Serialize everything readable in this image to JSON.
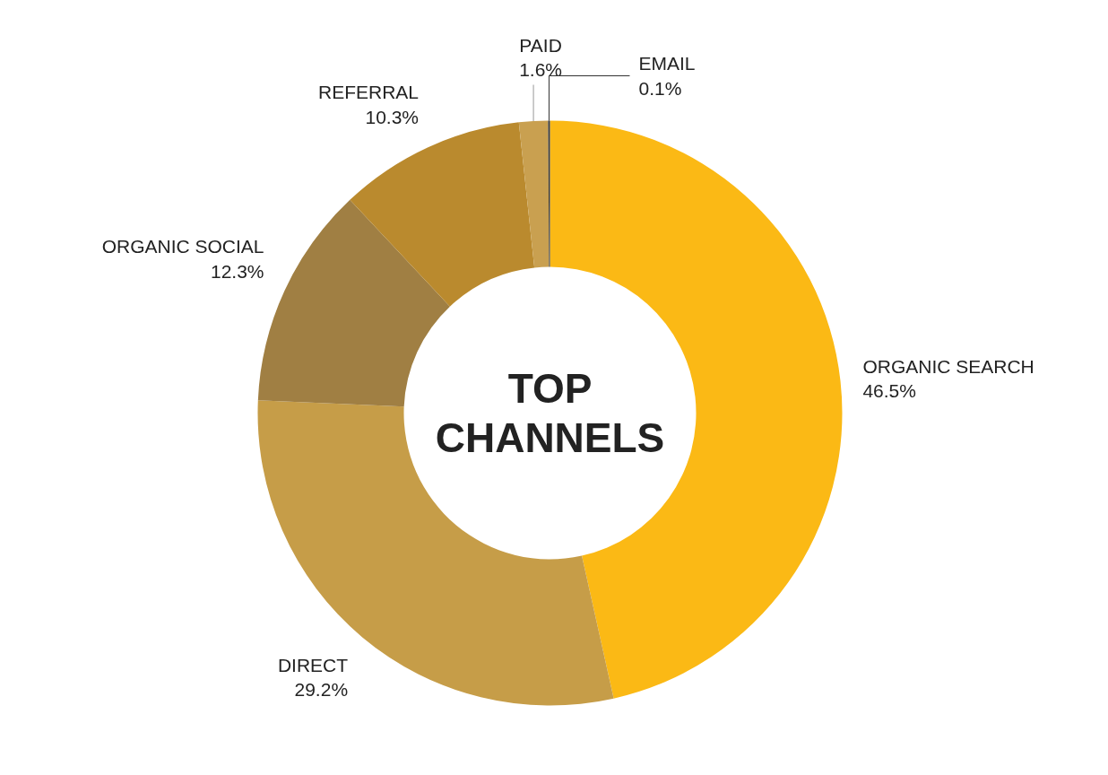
{
  "chart_data": {
    "type": "donut",
    "title": "TOP CHANNELS",
    "categories": [
      "ORGANIC SEARCH",
      "DIRECT",
      "ORGANIC SOCIAL",
      "REFERRAL",
      "PAID",
      "EMAIL"
    ],
    "values": [
      46.5,
      29.2,
      12.3,
      10.3,
      1.6,
      0.1
    ],
    "value_labels": [
      "46.5%",
      "29.2%",
      "12.3%",
      "10.3%",
      "1.6%",
      "0.1%"
    ],
    "colors": [
      "#fbb915",
      "#c69d48",
      "#a07f43",
      "#ba8a2e",
      "#c9a050",
      "#3a3a3a"
    ]
  }
}
